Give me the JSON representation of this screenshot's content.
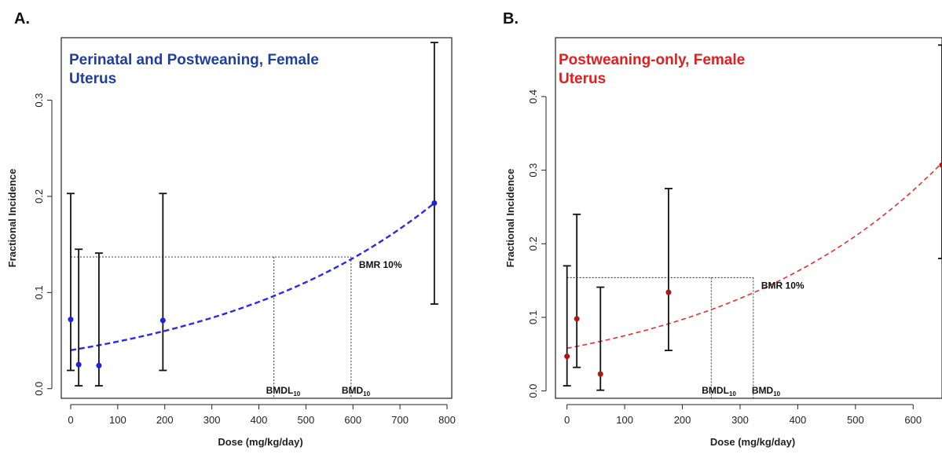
{
  "chart_data": [
    {
      "panel": "A.",
      "type": "scatter",
      "title_lines": [
        "Perinatal and Postweaning, Female",
        "Uterus"
      ],
      "title_color": "#1f3fa0",
      "xlabel": "Dose (mg/kg/day)",
      "ylabel": "Fractional Incidence",
      "xlim": [
        -20,
        810
      ],
      "ylim": [
        -0.01,
        0.365
      ],
      "xticks": [
        0,
        100,
        200,
        300,
        400,
        500,
        600,
        700,
        800
      ],
      "yticks": [
        0.0,
        0.1,
        0.2,
        0.3
      ],
      "ytick_labels": [
        "0.0",
        "0.1",
        "0.2",
        "0.3"
      ],
      "marker_color": "#1f1fe0",
      "curve_color": "#2a2ae8",
      "points": [
        {
          "x": 0,
          "y": 0.072,
          "lo": 0.019,
          "hi": 0.203
        },
        {
          "x": 17,
          "y": 0.025,
          "lo": 0.003,
          "hi": 0.145
        },
        {
          "x": 60,
          "y": 0.024,
          "lo": 0.003,
          "hi": 0.141
        },
        {
          "x": 196,
          "y": 0.071,
          "lo": 0.019,
          "hi": 0.203
        },
        {
          "x": 773,
          "y": 0.193,
          "lo": 0.088,
          "hi": 0.36
        }
      ],
      "curve": {
        "x": [
          0,
          773
        ],
        "y0": 0.04,
        "y1": 0.193
      },
      "bmr_level": 0.137,
      "bmdl": 432,
      "bmd": 596,
      "bmr_label": "BMR 10%",
      "bmdl_label": {
        "main": "BMDL",
        "sub": "10"
      },
      "bmd_label": {
        "main": "BMD",
        "sub": "10"
      }
    },
    {
      "panel": "B.",
      "type": "scatter",
      "title_lines": [
        "Postweaning-only, Female",
        "Uterus"
      ],
      "title_color": "#e02020",
      "xlabel": "Dose (mg/kg/day)",
      "ylabel": "Fractional Incidence",
      "xlim": [
        -20,
        650
      ],
      "ylim": [
        -0.01,
        0.48
      ],
      "xticks": [
        0,
        100,
        200,
        300,
        400,
        500,
        600
      ],
      "yticks": [
        0.0,
        0.1,
        0.2,
        0.3,
        0.4
      ],
      "ytick_labels": [
        "0.0",
        "0.1",
        "0.2",
        "0.3",
        "0.4"
      ],
      "marker_color": "#b01515",
      "curve_color": "#e83030",
      "points": [
        {
          "x": 0,
          "y": 0.047,
          "lo": 0.007,
          "hi": 0.17
        },
        {
          "x": 17,
          "y": 0.098,
          "lo": 0.032,
          "hi": 0.24
        },
        {
          "x": 58,
          "y": 0.023,
          "lo": 0.001,
          "hi": 0.141
        },
        {
          "x": 176,
          "y": 0.134,
          "lo": 0.055,
          "hi": 0.275
        },
        {
          "x": 650,
          "y": 0.307,
          "lo": 0.18,
          "hi": 0.47
        }
      ],
      "curve": {
        "x": [
          0,
          650
        ],
        "y0": 0.058,
        "y1": 0.31
      },
      "bmr_level": 0.154,
      "bmdl": 250,
      "bmd": 323,
      "bmr_label": "BMR 10%",
      "bmdl_label": {
        "main": "BMDL",
        "sub": "10"
      },
      "bmd_label": {
        "main": "BMD",
        "sub": "10"
      }
    }
  ]
}
